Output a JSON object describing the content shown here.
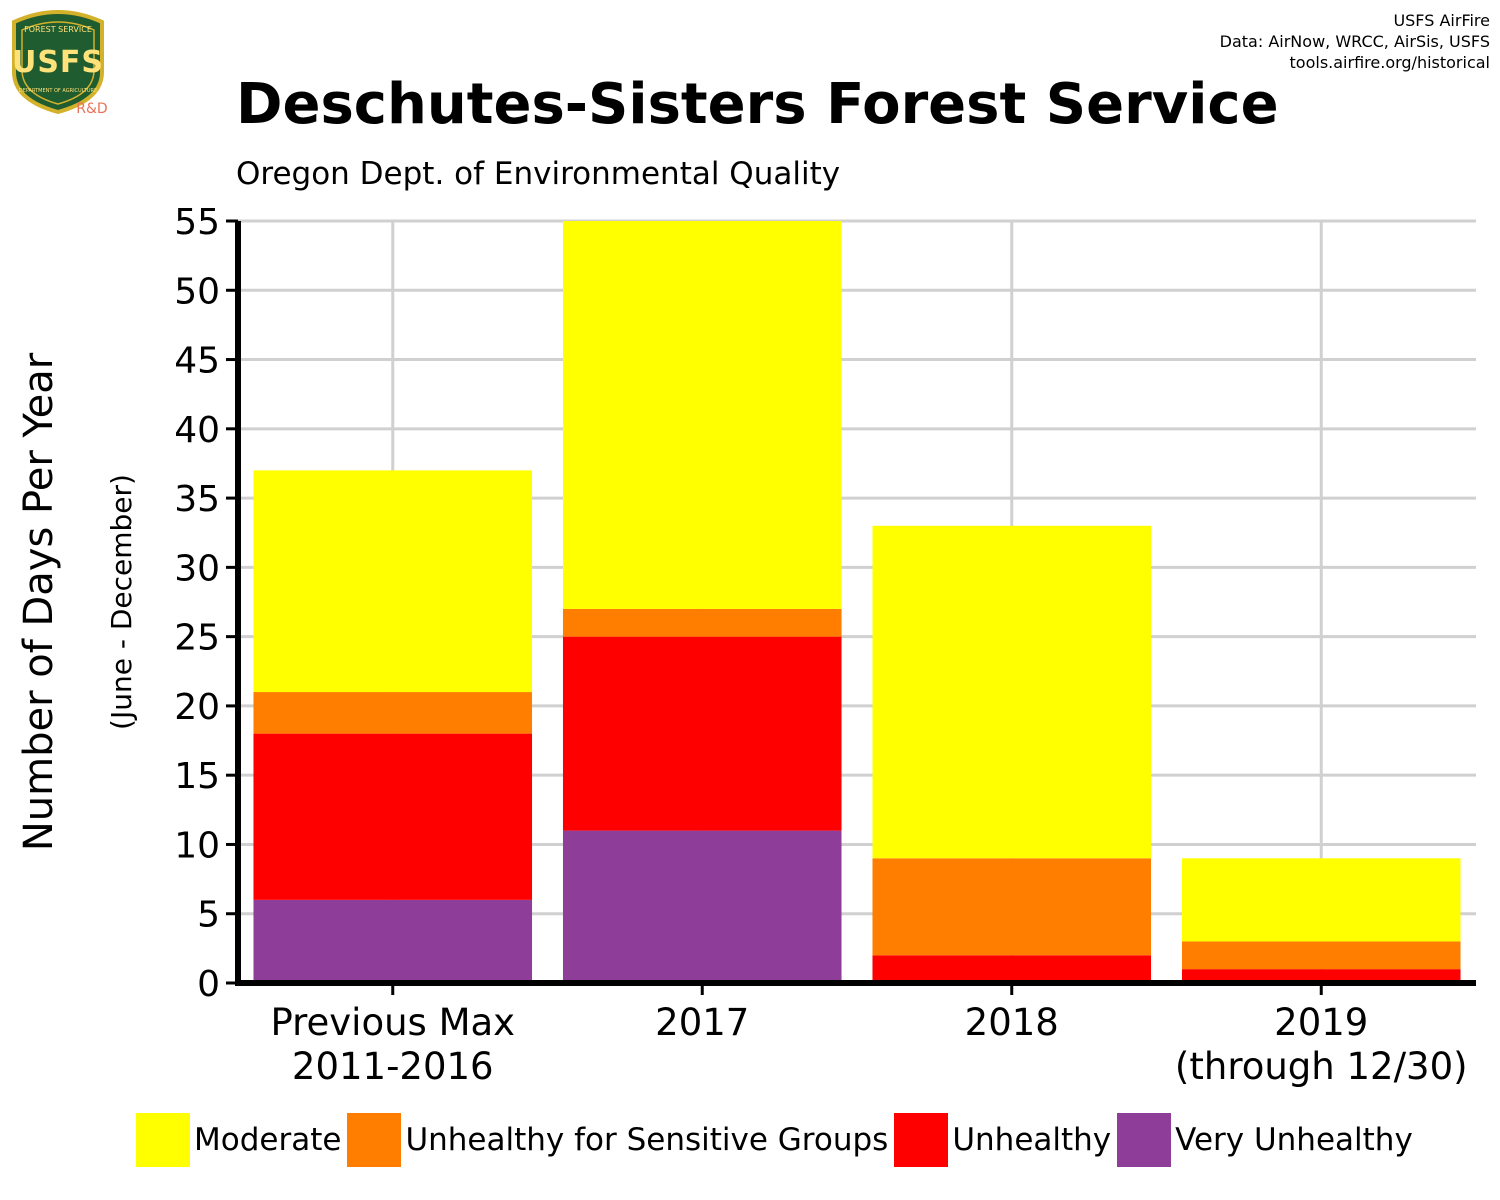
{
  "header": {
    "credit_lines": [
      "USFS AirFire",
      "Data: AirNow, WRCC, AirSis, USFS",
      "tools.airfire.org/historical"
    ],
    "logo": {
      "icon": "usfs-shield-logo",
      "text_top": "FOREST SERVICE",
      "text_main": "USFS",
      "text_bottom": "DEPARTMENT OF AGRICULTURE",
      "badge": "R&D"
    }
  },
  "chart_data": {
    "type": "bar",
    "stacked": true,
    "title": "Deschutes-Sisters Forest Service",
    "subtitle": "Oregon Dept. of Environmental Quality",
    "ylabel": "Number of Days Per Year",
    "ylabel_sub": "(June - December)",
    "xlabel": "",
    "ylim": [
      0,
      55
    ],
    "yticks": [
      0,
      5,
      10,
      15,
      20,
      25,
      30,
      35,
      40,
      45,
      50,
      55
    ],
    "grid": true,
    "legend_position": "bottom",
    "categories": [
      [
        "Previous Max",
        "2011-2016"
      ],
      [
        "2017"
      ],
      [
        "2018"
      ],
      [
        "2019",
        "(through 12/30)"
      ]
    ],
    "series": [
      {
        "name": "Very Unhealthy",
        "color": "#8E3E99",
        "values": [
          6,
          11,
          0,
          0
        ]
      },
      {
        "name": "Unhealthy",
        "color": "#FF0000",
        "values": [
          12,
          14,
          2,
          1
        ]
      },
      {
        "name": "Unhealthy for Sensitive Groups",
        "color": "#FF7E00",
        "values": [
          3,
          2,
          7,
          2
        ]
      },
      {
        "name": "Moderate",
        "color": "#FFFF00",
        "values": [
          16,
          28,
          24,
          6
        ]
      }
    ],
    "legend_order": [
      "Moderate",
      "Unhealthy for Sensitive Groups",
      "Unhealthy",
      "Very Unhealthy"
    ]
  }
}
